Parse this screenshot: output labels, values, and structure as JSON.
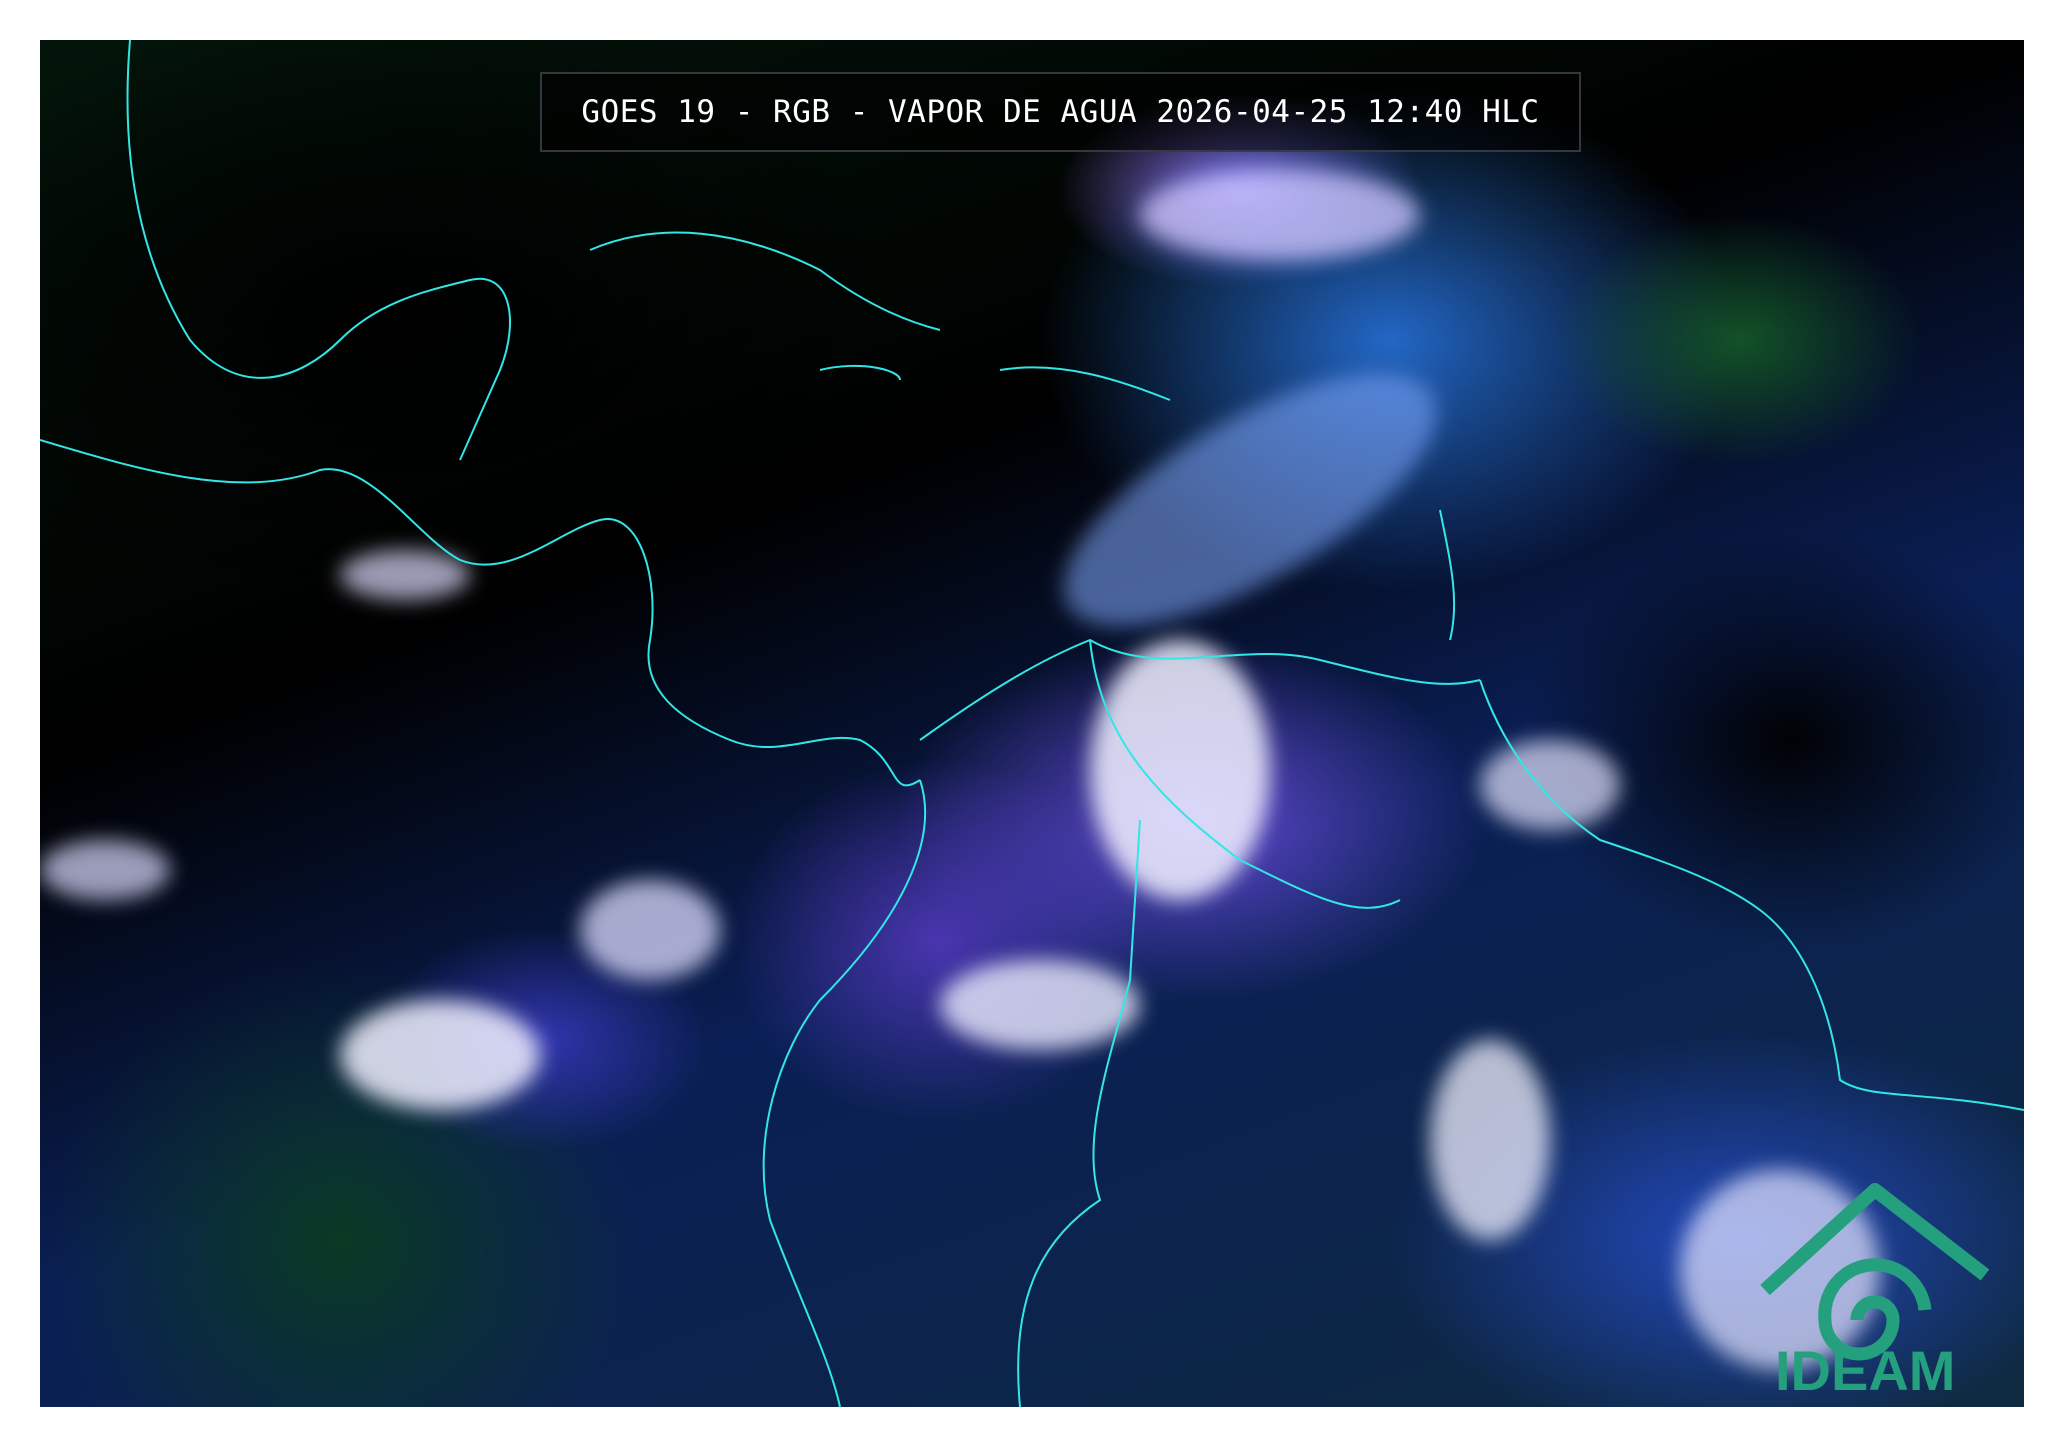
{
  "title": "GOES 19 - RGB - VAPOR DE AGUA 2026-04-25 12:40 HLC",
  "logo": {
    "text": "IDEAM",
    "color": "#25a07f"
  },
  "colors": {
    "coastline": "#33e6e6",
    "ocean_clear": "#000000",
    "cloud_high": "#ffffff",
    "moisture": "#7a5cff"
  }
}
